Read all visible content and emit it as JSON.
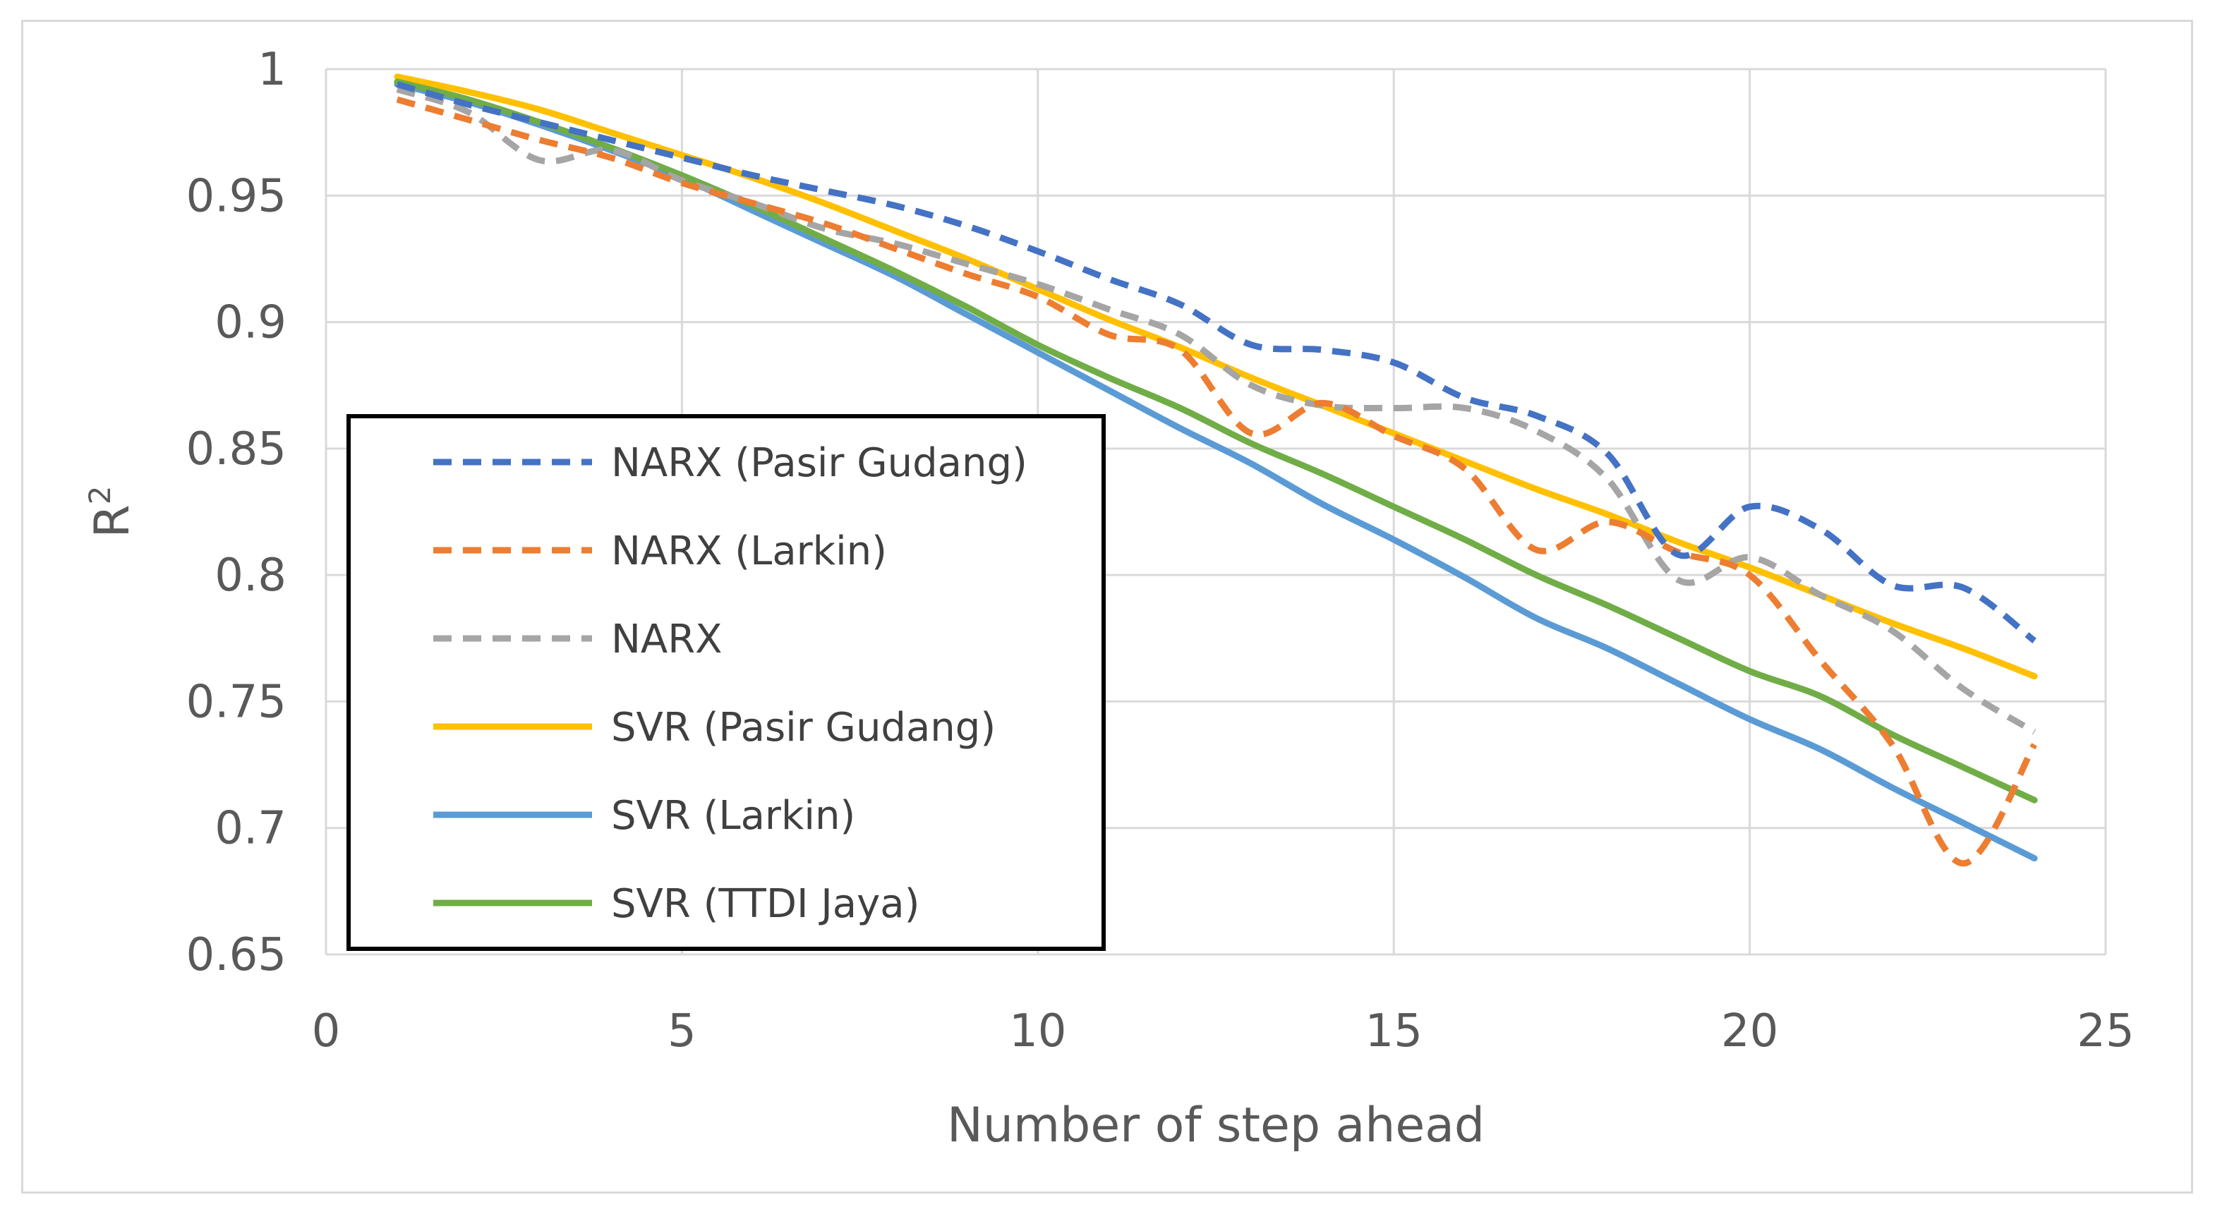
{
  "chart_data": {
    "type": "line",
    "title": "",
    "xlabel": "Number of step ahead",
    "ylabel": "R",
    "ylabel_superscript": "2",
    "xlim": [
      0,
      25
    ],
    "ylim": [
      0.65,
      1
    ],
    "xticks": [
      0,
      5,
      10,
      15,
      20,
      25
    ],
    "xtick_labels": [
      "0",
      "5",
      "10",
      "15",
      "20",
      "25"
    ],
    "yticks": [
      0.65,
      0.7,
      0.75,
      0.8,
      0.85,
      0.9,
      0.95,
      1
    ],
    "ytick_labels": [
      "0.65",
      "0.7",
      "0.75",
      "0.8",
      "0.85",
      "0.9",
      "0.95",
      "1"
    ],
    "grid": true,
    "legend_position": "lower-left inside plot",
    "x": [
      1,
      2,
      3,
      4,
      5,
      6,
      7,
      8,
      9,
      10,
      11,
      12,
      13,
      14,
      15,
      16,
      17,
      18,
      19,
      20,
      21,
      22,
      23,
      24
    ],
    "series": [
      {
        "name": "NARX (Pasir Gudang)",
        "color": "#4472c4",
        "dash": "dashed",
        "values": [
          0.994,
          0.986,
          0.979,
          0.972,
          0.965,
          0.958,
          0.952,
          0.946,
          0.938,
          0.928,
          0.917,
          0.907,
          0.891,
          0.889,
          0.884,
          0.87,
          0.863,
          0.848,
          0.808,
          0.827,
          0.818,
          0.796,
          0.795,
          0.774
        ]
      },
      {
        "name": "NARX (Larkin)",
        "color": "#ed7d31",
        "dash": "dashed",
        "values": [
          0.988,
          0.98,
          0.972,
          0.965,
          0.955,
          0.947,
          0.939,
          0.929,
          0.919,
          0.91,
          0.895,
          0.889,
          0.856,
          0.868,
          0.855,
          0.842,
          0.81,
          0.821,
          0.809,
          0.8,
          0.766,
          0.733,
          0.686,
          0.733
        ]
      },
      {
        "name": "NARX",
        "color": "#a5a5a5",
        "dash": "dashed",
        "values": [
          0.992,
          0.983,
          0.964,
          0.968,
          0.956,
          0.947,
          0.937,
          0.931,
          0.923,
          0.915,
          0.905,
          0.895,
          0.875,
          0.867,
          0.866,
          0.866,
          0.857,
          0.838,
          0.798,
          0.807,
          0.792,
          0.778,
          0.755,
          0.738
        ]
      },
      {
        "name": "SVR (Pasir Gudang)",
        "color": "#ffc000",
        "dash": "solid",
        "values": [
          0.997,
          0.991,
          0.984,
          0.975,
          0.966,
          0.957,
          0.947,
          0.936,
          0.925,
          0.913,
          0.901,
          0.89,
          0.878,
          0.867,
          0.856,
          0.845,
          0.834,
          0.824,
          0.813,
          0.803,
          0.792,
          0.781,
          0.771,
          0.76
        ]
      },
      {
        "name": "SVR (Larkin)",
        "color": "#5b9bd5",
        "dash": "solid",
        "values": [
          0.994,
          0.987,
          0.978,
          0.968,
          0.957,
          0.944,
          0.931,
          0.918,
          0.903,
          0.888,
          0.873,
          0.858,
          0.844,
          0.828,
          0.814,
          0.799,
          0.783,
          0.771,
          0.757,
          0.743,
          0.731,
          0.716,
          0.702,
          0.688
        ]
      },
      {
        "name": "SVR (TTDI Jaya)",
        "color": "#70ad47",
        "dash": "solid",
        "values": [
          0.995,
          0.988,
          0.979,
          0.969,
          0.958,
          0.946,
          0.933,
          0.92,
          0.906,
          0.891,
          0.878,
          0.866,
          0.852,
          0.84,
          0.827,
          0.814,
          0.8,
          0.788,
          0.775,
          0.762,
          0.752,
          0.737,
          0.724,
          0.711
        ]
      }
    ]
  }
}
